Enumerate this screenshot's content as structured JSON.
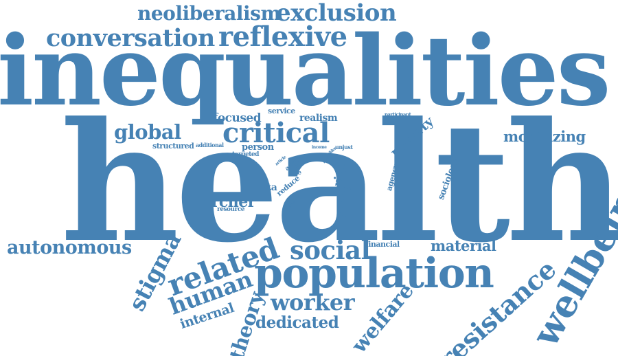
{
  "theme": {
    "word_color": "#4682b4",
    "background": "#ffffff"
  },
  "words": {
    "health": "health",
    "inequalities": "inequalities",
    "population": "population",
    "wellbeing": "wellbeing",
    "critical": "critical",
    "conversation": "conversation",
    "reflexive": "reflexive",
    "exclusion": "exclusion",
    "neoliberalism": "neoliberalism",
    "global": "global",
    "social": "social",
    "related": "related",
    "human": "human",
    "stigma": "stigma",
    "autonomous": "autonomous",
    "worker": "worker",
    "resistance": "resistance",
    "welfare": "welfare",
    "theory": "theory",
    "dedicated": "dedicated",
    "internal": "internal",
    "material": "material",
    "mobilizing": "mobilizing",
    "archer": "archer",
    "focused": "focused",
    "realism": "realism",
    "service": "service",
    "person": "person",
    "structured": "structured",
    "additional": "additional",
    "targeted": "targeted",
    "meta": "meta",
    "reduce": "reduce",
    "resource": "resource",
    "financial": "financial",
    "poverty": "poverty",
    "agency": "agency",
    "sociology": "sociology",
    "right": "right",
    "quality": "quality",
    "participant": "participant",
    "income": "income",
    "older": "older",
    "unjust": "unjust",
    "advice": "advice",
    "life": "life",
    "article": "article",
    "time": "time",
    "level": "level",
    "analysis": "analysis"
  }
}
